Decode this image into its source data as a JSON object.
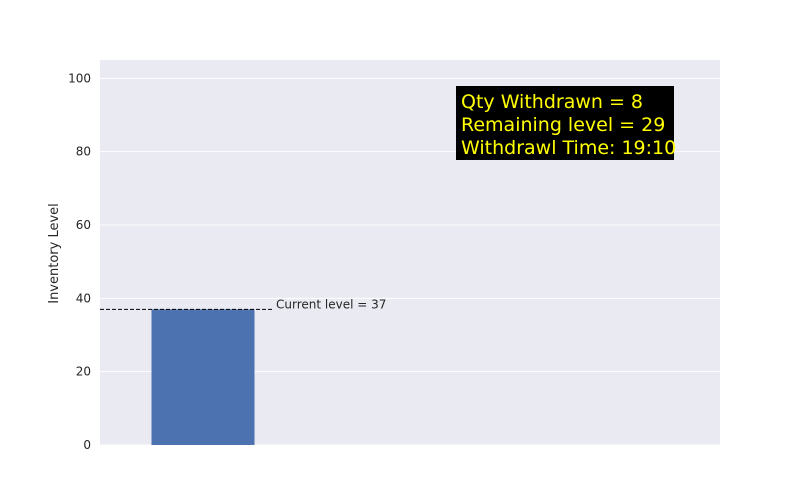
{
  "chart_data": {
    "type": "bar",
    "categories": [
      ""
    ],
    "values": [
      37
    ],
    "ylabel": "Inventory Level",
    "xlabel": "",
    "ylim": [
      0,
      105
    ],
    "yticks": [
      0,
      20,
      40,
      60,
      80,
      100
    ],
    "grid": true,
    "reference_line": {
      "value": 37,
      "style": "dashed"
    },
    "annotation": "Current level = 37",
    "info_box": {
      "lines": [
        "Qty Withdrawn = 8",
        "Remaining level = 29",
        "Withdrawl Time: 19:10"
      ],
      "position": "top-right"
    },
    "colors": {
      "bar": "#4c72b0",
      "plot_background": "#eaeaf2",
      "grid": "#ffffff",
      "info_box_background": "#000000",
      "info_box_text": "#ffff00"
    }
  }
}
